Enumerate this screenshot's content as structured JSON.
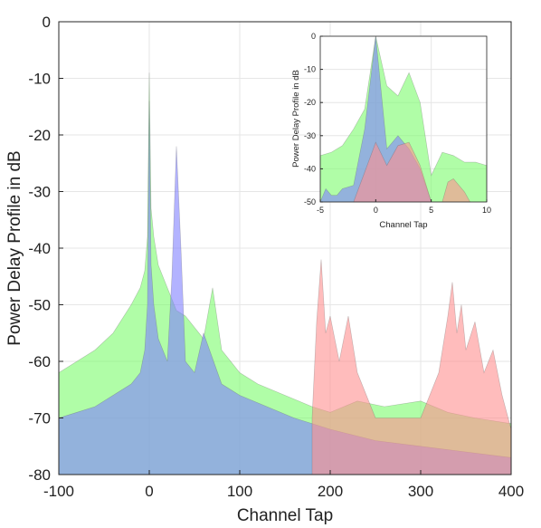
{
  "chart_data": [
    {
      "type": "area",
      "xlabel": "Channel Tap",
      "ylabel": "Power Delay Profile in dB",
      "xlim": [
        -100,
        400
      ],
      "ylim": [
        -80,
        0
      ],
      "x_ticks": [
        -100,
        0,
        100,
        200,
        300,
        400
      ],
      "y_ticks": [
        0,
        -10,
        -20,
        -30,
        -40,
        -50,
        -60,
        -70,
        -80
      ],
      "grid": true,
      "series": [
        {
          "color": "#7CFC6C",
          "x": [
            -100,
            -80,
            -60,
            -40,
            -20,
            -10,
            -5,
            -2,
            0,
            2,
            5,
            10,
            20,
            30,
            40,
            60,
            70,
            80,
            100,
            120,
            150,
            180,
            200,
            230,
            260,
            300,
            330,
            360,
            400
          ],
          "y": [
            -62,
            -60,
            -58,
            -55,
            -50,
            -47,
            -44,
            -38,
            -9,
            -33,
            -38,
            -43,
            -47,
            -51,
            -52,
            -56,
            -47,
            -58,
            -62,
            -64,
            -66,
            -68,
            -69,
            -67,
            -68,
            -67,
            -69,
            -70,
            -71
          ]
        },
        {
          "color": "#8080FF",
          "x": [
            -100,
            -80,
            -60,
            -40,
            -20,
            -10,
            -5,
            -2,
            0,
            2,
            5,
            10,
            20,
            25,
            30,
            35,
            40,
            50,
            60,
            80,
            100,
            130,
            160,
            200,
            250,
            300,
            350,
            400
          ],
          "y": [
            -70,
            -69,
            -68,
            -66,
            -64,
            -62,
            -58,
            -50,
            -14,
            -43,
            -50,
            -56,
            -60,
            -45,
            -22,
            -40,
            -60,
            -62,
            -55,
            -64,
            -66,
            -68,
            -70,
            -72,
            -74,
            -75,
            -76,
            -77
          ]
        },
        {
          "color": "#FF9090",
          "x": [
            180,
            185,
            190,
            195,
            200,
            210,
            220,
            230,
            240,
            250,
            300,
            320,
            330,
            335,
            340,
            345,
            350,
            360,
            370,
            380,
            390,
            400
          ],
          "y": [
            -70,
            -53,
            -42,
            -55,
            -52,
            -60,
            -52,
            -62,
            -66,
            -70,
            -70,
            -62,
            -52,
            -46,
            -55,
            -50,
            -58,
            -53,
            -62,
            -58,
            -66,
            -72
          ]
        }
      ]
    },
    {
      "type": "area",
      "xlabel": "Channel Tap",
      "ylabel": "Power Delay Profile in dB",
      "xlim": [
        -5,
        10
      ],
      "ylim": [
        -50,
        0
      ],
      "x_ticks": [
        -5,
        0,
        5,
        10
      ],
      "y_ticks": [
        0,
        -10,
        -20,
        -30,
        -40,
        -50
      ],
      "grid": true,
      "series": [
        {
          "color": "#7CFC6C",
          "x": [
            -5,
            -4,
            -3,
            -2,
            -1,
            0,
            1,
            2,
            3,
            4,
            5,
            6,
            7,
            8,
            9,
            10
          ],
          "y": [
            -36,
            -35,
            -33,
            -28,
            -22,
            0,
            -15,
            -18,
            -11,
            -20,
            -42,
            -35,
            -36,
            -38,
            -38,
            -39
          ]
        },
        {
          "color": "#8080FF",
          "x": [
            -5,
            -4.5,
            -4,
            -3.5,
            -3,
            -2,
            -1,
            0,
            1,
            2,
            3,
            4,
            5
          ],
          "y": [
            -50,
            -46,
            -48,
            -48,
            -46,
            -45,
            -28,
            0,
            -34,
            -30,
            -34,
            -40,
            -50
          ]
        },
        {
          "color": "#FF9090",
          "x": [
            -2,
            -1,
            0,
            1,
            2,
            3,
            4,
            5,
            6,
            6.5,
            7,
            8,
            8.5
          ],
          "y": [
            -50,
            -41,
            -32,
            -39,
            -33,
            -32,
            -39,
            -50,
            -50,
            -44,
            -43,
            -47,
            -50
          ]
        }
      ]
    }
  ]
}
